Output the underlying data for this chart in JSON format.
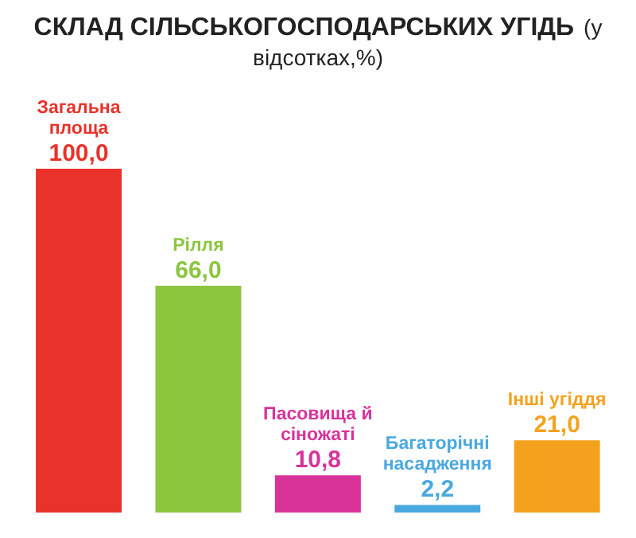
{
  "chart_data": {
    "type": "bar",
    "title": "СКЛАД СІЛЬСЬКОГОСПОДАРСЬКИХ УГІДЬ",
    "subtitle": "(у відсотках,%)",
    "categories": [
      "Загальна площа",
      "Рілля",
      "Пасовища й сіножаті",
      "Багаторічні насадження",
      "Інші угіддя"
    ],
    "values": [
      100.0,
      66.0,
      10.8,
      2.2,
      21.0
    ],
    "value_labels": [
      "100,0",
      "66,0",
      "10,8",
      "2,2",
      "21,0"
    ],
    "colors": [
      "#e8322a",
      "#8cc63f",
      "#d9339a",
      "#4aa8e0",
      "#f4a21e"
    ],
    "grid": false,
    "legend": false
  }
}
